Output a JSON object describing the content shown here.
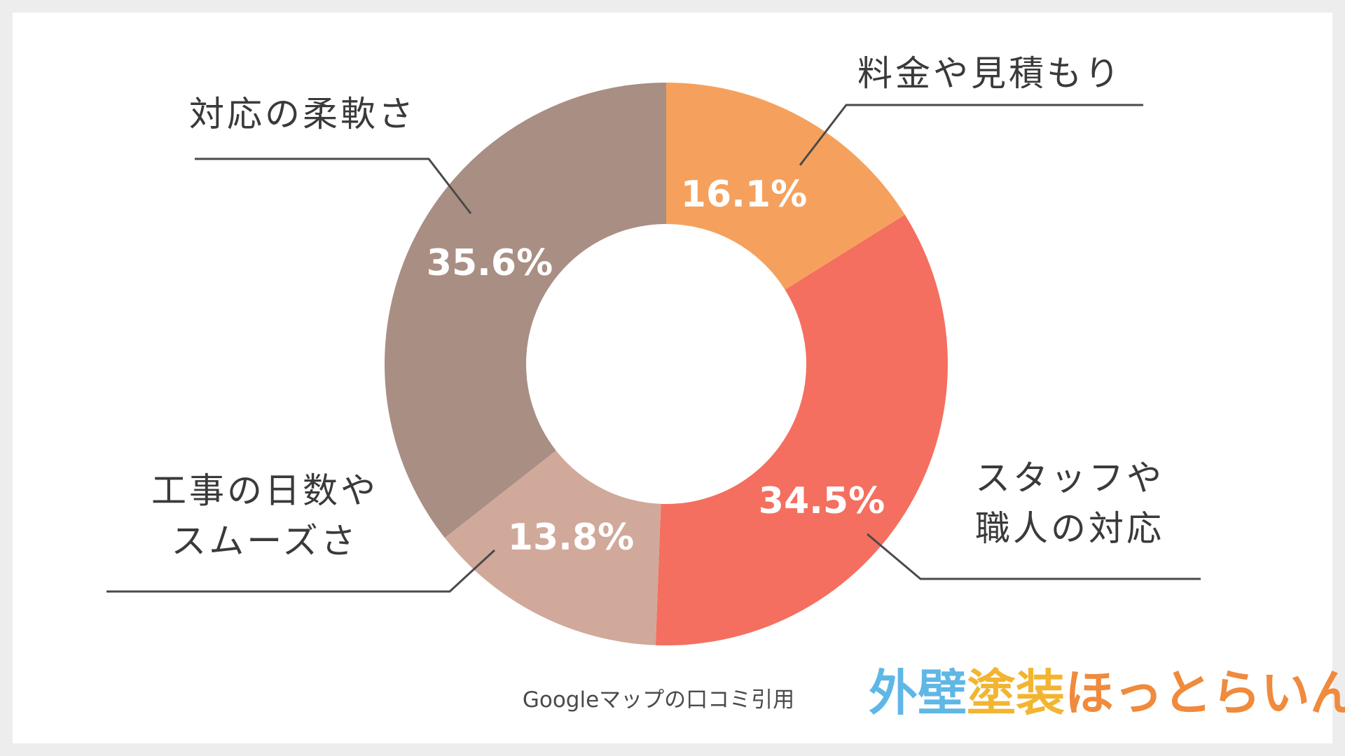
{
  "chart_data": {
    "type": "pie",
    "donut": true,
    "title": "",
    "slices": [
      {
        "label": [
          "料金や見積もり"
        ],
        "value": 16.1,
        "display": "16.1%",
        "color": "#f5a15d"
      },
      {
        "label": [
          "スタッフや",
          "職人の対応"
        ],
        "value": 34.5,
        "display": "34.5%",
        "color": "#f46f5f"
      },
      {
        "label": [
          "工事の日数や",
          "スムーズさ"
        ],
        "value": 13.8,
        "display": "13.8%",
        "color": "#d0a99b"
      },
      {
        "label": [
          "対応の柔軟さ"
        ],
        "value": 35.6,
        "display": "35.6%",
        "color": "#a98e83"
      }
    ]
  },
  "footer": {
    "source": "Googleマップの口コミ引用",
    "logo_text": "外壁塗装ほっとらいん",
    "logo_colors": [
      "#5fb7e5",
      "#5fb7e5",
      "#f2b531",
      "#f2b531",
      "#f08a3c",
      "#f08a3c",
      "#f08a3c",
      "#f08a3c",
      "#f08a3c",
      "#f08a3c"
    ]
  }
}
